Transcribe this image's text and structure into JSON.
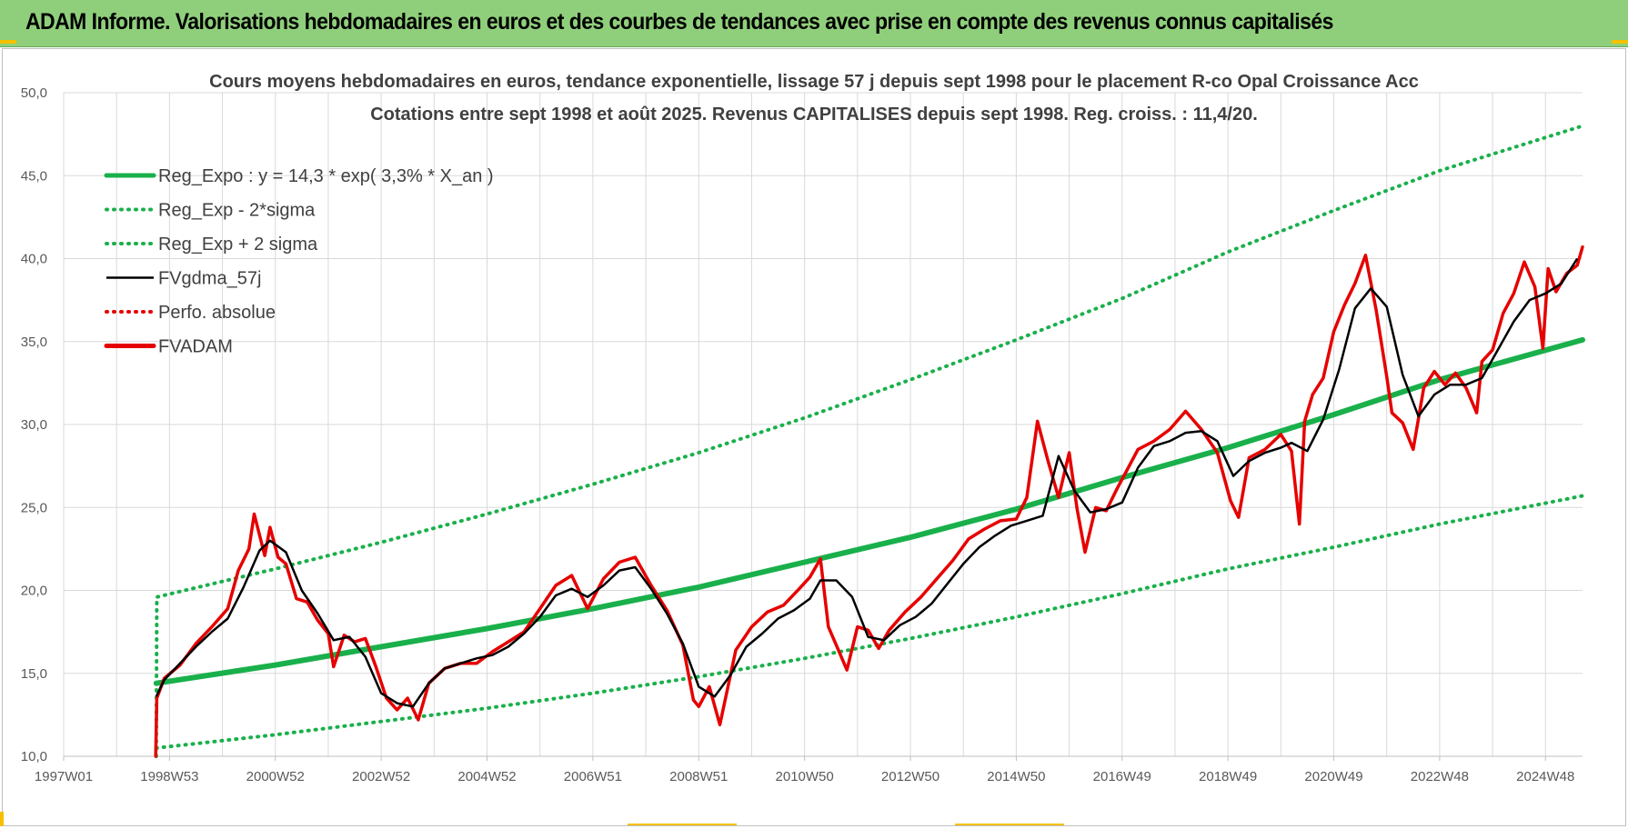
{
  "banner": {
    "title": "ADAM Informe. Valorisations hebdomadaires en euros et des courbes de tendances avec prise en compte des revenus connus capitalisés"
  },
  "chart_data": {
    "type": "line",
    "title": "Cours moyens hebdomadaires en euros, tendance exponentielle, lissage 57 j depuis sept 1998 pour le placement R-co Opal Croissance Acc",
    "subtitle": "Cotations entre sept 1998 et août 2025. Revenus CAPITALISES depuis sept 1998. Reg. croiss. : 11,4/20.",
    "xlabel": "",
    "ylabel": "",
    "xlim": [
      1997.0,
      2025.7
    ],
    "ylim": [
      10,
      50
    ],
    "grid": true,
    "legend_position": "top-left",
    "x_tick_labels": [
      "1997W01",
      "1998W53",
      "2000W52",
      "2002W52",
      "2004W52",
      "2006W51",
      "2008W51",
      "2010W50",
      "2012W50",
      "2014W50",
      "2016W49",
      "2018W49",
      "2020W49",
      "2022W48",
      "2024W48"
    ],
    "x_tick_values": [
      1997.0,
      1999.0,
      2001.0,
      2003.0,
      2005.0,
      2007.0,
      2009.0,
      2011.0,
      2013.0,
      2015.0,
      2017.0,
      2019.0,
      2021.0,
      2023.0,
      2025.0
    ],
    "y_tick_labels": [
      "10,0",
      "15,0",
      "20,0",
      "25,0",
      "30,0",
      "35,0",
      "40,0",
      "45,0",
      "50,0"
    ],
    "y_tick_values": [
      10,
      15,
      20,
      25,
      30,
      35,
      40,
      45,
      50
    ],
    "colors": {
      "reg_expo": "#19b04b",
      "reg_minus": "#19b04b",
      "reg_plus": "#19b04b",
      "fvgdma": "#000000",
      "perfo": "#e60000",
      "fvadam": "#e60000",
      "grid": "#d9d9d9"
    },
    "series": [
      {
        "name": "Reg_Expo : y = 14,3 * exp( 3,3% *  X_an )",
        "key": "reg_expo",
        "style": "solid-thick",
        "x": [
          1998.75,
          2001.0,
          2003.0,
          2005.0,
          2007.0,
          2009.0,
          2011.0,
          2013.0,
          2015.0,
          2017.0,
          2019.0,
          2021.0,
          2023.0,
          2025.7
        ],
        "values": [
          14.4,
          15.5,
          16.6,
          17.7,
          18.9,
          20.2,
          21.7,
          23.2,
          24.9,
          26.8,
          28.6,
          30.6,
          32.7,
          35.1
        ]
      },
      {
        "name": "Reg_Exp - 2*sigma",
        "key": "reg_minus",
        "style": "dotted",
        "x": [
          1998.75,
          2001.0,
          2003.0,
          2005.0,
          2007.0,
          2009.0,
          2011.0,
          2013.0,
          2015.0,
          2017.0,
          2019.0,
          2021.0,
          2023.0,
          2025.7
        ],
        "values": [
          10.5,
          11.3,
          12.1,
          12.9,
          13.8,
          14.8,
          15.9,
          17.1,
          18.4,
          19.8,
          21.3,
          22.6,
          24.0,
          25.7
        ]
      },
      {
        "name": "Reg_Exp + 2 sigma",
        "key": "reg_plus",
        "style": "dotted",
        "x": [
          1998.75,
          1998.76,
          2001.0,
          2003.0,
          2005.0,
          2007.0,
          2009.0,
          2011.0,
          2013.0,
          2015.0,
          2017.0,
          2019.0,
          2021.0,
          2023.0,
          2025.7
        ],
        "values": [
          10.0,
          19.6,
          21.3,
          22.9,
          24.6,
          26.4,
          28.3,
          30.4,
          32.7,
          35.1,
          37.6,
          40.4,
          42.9,
          45.3,
          48.0
        ]
      },
      {
        "name": "FVgdma_57j",
        "key": "fvgdma",
        "style": "solid",
        "x": [
          1998.75,
          1998.9,
          1999.2,
          1999.5,
          1999.8,
          2000.1,
          2000.4,
          2000.7,
          2000.9,
          2001.2,
          2001.5,
          2001.8,
          2002.1,
          2002.4,
          2002.7,
          2003.0,
          2003.3,
          2003.6,
          2003.9,
          2004.2,
          2004.5,
          2004.8,
          2005.1,
          2005.4,
          2005.7,
          2006.0,
          2006.3,
          2006.6,
          2006.9,
          2007.2,
          2007.5,
          2007.8,
          2008.1,
          2008.4,
          2008.7,
          2009.0,
          2009.3,
          2009.6,
          2009.9,
          2010.2,
          2010.5,
          2010.8,
          2011.1,
          2011.3,
          2011.6,
          2011.9,
          2012.2,
          2012.5,
          2012.8,
          2013.1,
          2013.4,
          2013.7,
          2014.0,
          2014.3,
          2014.6,
          2014.9,
          2015.2,
          2015.5,
          2015.8,
          2016.1,
          2016.4,
          2016.7,
          2017.0,
          2017.3,
          2017.6,
          2017.9,
          2018.2,
          2018.5,
          2018.8,
          2019.1,
          2019.4,
          2019.7,
          2020.0,
          2020.2,
          2020.5,
          2020.8,
          2021.1,
          2021.4,
          2021.7,
          2022.0,
          2022.3,
          2022.6,
          2022.9,
          2023.2,
          2023.5,
          2023.8,
          2024.1,
          2024.4,
          2024.7,
          2025.0,
          2025.3,
          2025.6
        ],
        "values": [
          13.6,
          14.6,
          15.6,
          16.6,
          17.5,
          18.3,
          20.2,
          22.4,
          23.0,
          22.3,
          20.0,
          18.6,
          17.0,
          17.2,
          16.0,
          13.8,
          13.2,
          13.0,
          14.4,
          15.3,
          15.6,
          15.9,
          16.1,
          16.6,
          17.4,
          18.4,
          19.7,
          20.1,
          19.6,
          20.3,
          21.2,
          21.4,
          20.1,
          18.6,
          16.8,
          14.2,
          13.6,
          14.9,
          16.6,
          17.4,
          18.3,
          18.8,
          19.5,
          20.6,
          20.6,
          19.6,
          17.2,
          17.0,
          17.9,
          18.4,
          19.2,
          20.4,
          21.6,
          22.6,
          23.3,
          23.9,
          24.2,
          24.5,
          28.1,
          26.0,
          24.7,
          24.9,
          25.3,
          27.4,
          28.7,
          29.0,
          29.5,
          29.6,
          29.0,
          26.9,
          27.8,
          28.3,
          28.6,
          28.9,
          28.4,
          30.3,
          33.3,
          37.0,
          38.2,
          37.1,
          33.0,
          30.5,
          31.8,
          32.4,
          32.4,
          32.8,
          34.5,
          36.2,
          37.5,
          37.9,
          38.5,
          40.0
        ]
      },
      {
        "name": "Perfo. absolue",
        "key": "perfo",
        "style": "dotted",
        "x": [],
        "values": []
      },
      {
        "name": "FVADAM",
        "key": "fvadam",
        "style": "solid-thick",
        "x": [
          1998.74,
          1998.76,
          1998.9,
          1999.2,
          1999.5,
          1999.8,
          2000.1,
          2000.3,
          2000.5,
          2000.6,
          2000.8,
          2000.9,
          2001.05,
          2001.2,
          2001.4,
          2001.6,
          2001.8,
          2002.0,
          2002.1,
          2002.3,
          2002.5,
          2002.7,
          2002.9,
          2003.1,
          2003.3,
          2003.5,
          2003.7,
          2003.9,
          2004.2,
          2004.5,
          2004.8,
          2005.1,
          2005.4,
          2005.7,
          2006.0,
          2006.3,
          2006.6,
          2006.9,
          2007.2,
          2007.5,
          2007.8,
          2008.1,
          2008.4,
          2008.7,
          2008.9,
          2009.0,
          2009.2,
          2009.4,
          2009.7,
          2010.0,
          2010.3,
          2010.6,
          2010.9,
          2011.1,
          2011.3,
          2011.45,
          2011.6,
          2011.8,
          2012.0,
          2012.2,
          2012.4,
          2012.6,
          2012.9,
          2013.2,
          2013.5,
          2013.8,
          2014.1,
          2014.4,
          2014.7,
          2015.0,
          2015.2,
          2015.4,
          2015.6,
          2015.8,
          2016.0,
          2016.15,
          2016.3,
          2016.5,
          2016.7,
          2016.9,
          2017.1,
          2017.3,
          2017.6,
          2017.9,
          2018.2,
          2018.5,
          2018.8,
          2019.05,
          2019.2,
          2019.4,
          2019.7,
          2020.0,
          2020.2,
          2020.35,
          2020.45,
          2020.6,
          2020.8,
          2021.0,
          2021.2,
          2021.4,
          2021.6,
          2021.8,
          2022.0,
          2022.1,
          2022.3,
          2022.5,
          2022.7,
          2022.9,
          2023.1,
          2023.3,
          2023.5,
          2023.7,
          2023.8,
          2024.0,
          2024.2,
          2024.4,
          2024.6,
          2024.8,
          2024.95,
          2025.05,
          2025.2,
          2025.4,
          2025.6,
          2025.7
        ],
        "values": [
          10.0,
          13.5,
          14.7,
          15.5,
          16.8,
          17.8,
          18.9,
          21.2,
          22.5,
          24.6,
          22.1,
          23.8,
          22.0,
          21.6,
          19.5,
          19.3,
          18.2,
          17.4,
          15.4,
          17.3,
          16.9,
          17.1,
          15.4,
          13.5,
          12.8,
          13.5,
          12.2,
          14.4,
          15.3,
          15.6,
          15.6,
          16.3,
          16.9,
          17.5,
          18.9,
          20.3,
          20.9,
          18.9,
          20.7,
          21.7,
          22.0,
          20.3,
          18.8,
          16.7,
          13.4,
          13.0,
          14.2,
          11.9,
          16.4,
          17.8,
          18.7,
          19.1,
          20.1,
          20.8,
          21.9,
          17.8,
          16.7,
          15.2,
          17.8,
          17.6,
          16.5,
          17.6,
          18.7,
          19.6,
          20.7,
          21.8,
          23.1,
          23.7,
          24.2,
          24.3,
          25.6,
          30.2,
          27.8,
          25.6,
          28.3,
          24.9,
          22.3,
          25.0,
          24.8,
          26.1,
          27.3,
          28.5,
          29.0,
          29.7,
          30.8,
          29.7,
          28.3,
          25.4,
          24.4,
          28.0,
          28.5,
          29.4,
          28.4,
          24.0,
          30.2,
          31.8,
          32.8,
          35.6,
          37.2,
          38.5,
          40.2,
          36.9,
          32.9,
          30.7,
          30.1,
          28.5,
          32.2,
          33.2,
          32.4,
          33.1,
          32.2,
          30.7,
          33.8,
          34.5,
          36.7,
          37.9,
          39.8,
          38.3,
          34.6,
          39.4,
          38.0,
          39.1,
          39.6,
          40.7
        ]
      }
    ]
  }
}
